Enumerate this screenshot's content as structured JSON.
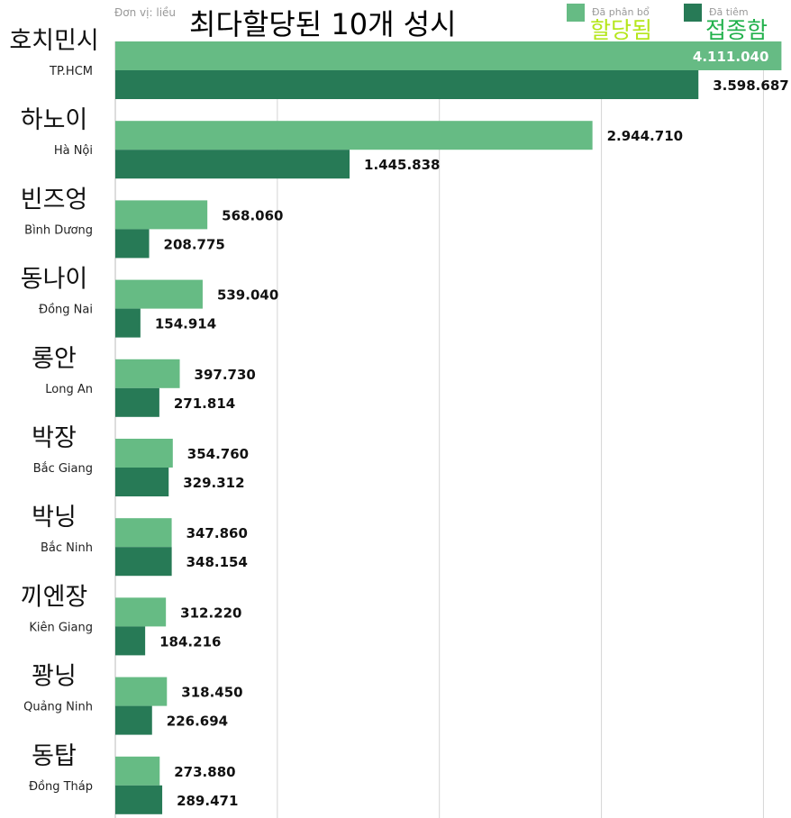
{
  "chart_data": {
    "type": "bar",
    "orientation": "horizontal",
    "title": "최다할당된 10개 성시",
    "unit_label": "Đơn vị: liều",
    "categories": [
      "TP.HCM",
      "Hà Nội",
      "Bình Dương",
      "Đồng Nai",
      "Long An",
      "Bắc Giang",
      "Bắc Ninh",
      "Kiên Giang",
      "Quảng Ninh",
      "Đồng Tháp"
    ],
    "categories_ko": [
      "호치민시",
      "하노이",
      "빈즈엉",
      "동나이",
      "롱안",
      "박장",
      "박닝",
      "끼엔장",
      "꽝닝",
      "동탑"
    ],
    "series": [
      {
        "name": "Đã phân bổ",
        "name_ko": "할당됨",
        "color": "#66bb84",
        "ko_color": "#b5e61d",
        "values": [
          4111040,
          2944710,
          568060,
          539040,
          397730,
          354760,
          347860,
          312220,
          318450,
          273880
        ],
        "labels": [
          "4.111.040",
          "2.944.710",
          "568.060",
          "539.040",
          "397.730",
          "354.760",
          "347.860",
          "312.220",
          "318.450",
          "273.880"
        ]
      },
      {
        "name": "Đã tiêm",
        "name_ko": "접종함",
        "color": "#277a56",
        "ko_color": "#22b14c",
        "values": [
          3598687,
          1445838,
          208775,
          154914,
          271814,
          329312,
          348154,
          184216,
          226694,
          289471
        ],
        "labels": [
          "3.598.687",
          "1.445.838",
          "208.775",
          "154.914",
          "271.814",
          "329.312",
          "348.154",
          "184.216",
          "226.694",
          "289.471"
        ]
      }
    ],
    "xlim": [
      0,
      4170000
    ],
    "grid_step": 1000000,
    "grid": true,
    "legend": "top-right"
  }
}
